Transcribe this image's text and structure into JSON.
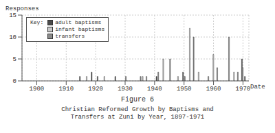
{
  "chart_data": {
    "type": "bar",
    "title": "Figure 6",
    "subtitle": "Christian Reformed Growth by Baptisms and Transfers at Zuni by Year, 1897-1971",
    "x_label": "Date",
    "y_label": "Responses",
    "legend_title": "Key:",
    "legend": "upper left",
    "grid": true,
    "x": [
      1915,
      1917,
      1919,
      1921,
      1923,
      1927,
      1930,
      1935,
      1936,
      1937,
      1941,
      1943,
      1945,
      1948,
      1950,
      1952,
      1953,
      1955,
      1958,
      1960,
      1961,
      1965,
      1967,
      1968,
      1970,
      1971
    ],
    "series": [
      {
        "name": "adult baptisms",
        "color": "#4a4a4a",
        "values": [
          1,
          null,
          2,
          1,
          null,
          1,
          null,
          null,
          null,
          null,
          1,
          null,
          null,
          null,
          2,
          null,
          null,
          null,
          null,
          null,
          null,
          null,
          null,
          null,
          5,
          1
        ]
      },
      {
        "name": "infant baptisms",
        "color": "#c8c8c8",
        "values": [
          null,
          1,
          null,
          null,
          1,
          null,
          null,
          null,
          1,
          null,
          null,
          5,
          null,
          1,
          null,
          12,
          null,
          2,
          null,
          6,
          null,
          null,
          2,
          null,
          3,
          null
        ]
      },
      {
        "name": "transfers",
        "color": "#8a8a8a",
        "values": [
          null,
          null,
          null,
          null,
          null,
          null,
          1,
          1,
          null,
          1,
          2,
          null,
          5,
          null,
          1,
          null,
          10,
          null,
          1,
          null,
          3,
          10,
          null,
          2,
          null,
          null
        ]
      }
    ],
    "xlim": [
      1895,
      1972
    ],
    "xticks": [
      1900,
      1910,
      1920,
      1930,
      1940,
      1950,
      1960,
      1970
    ],
    "ylim": [
      0,
      15
    ],
    "yticks": [
      0,
      5,
      10,
      15
    ]
  }
}
